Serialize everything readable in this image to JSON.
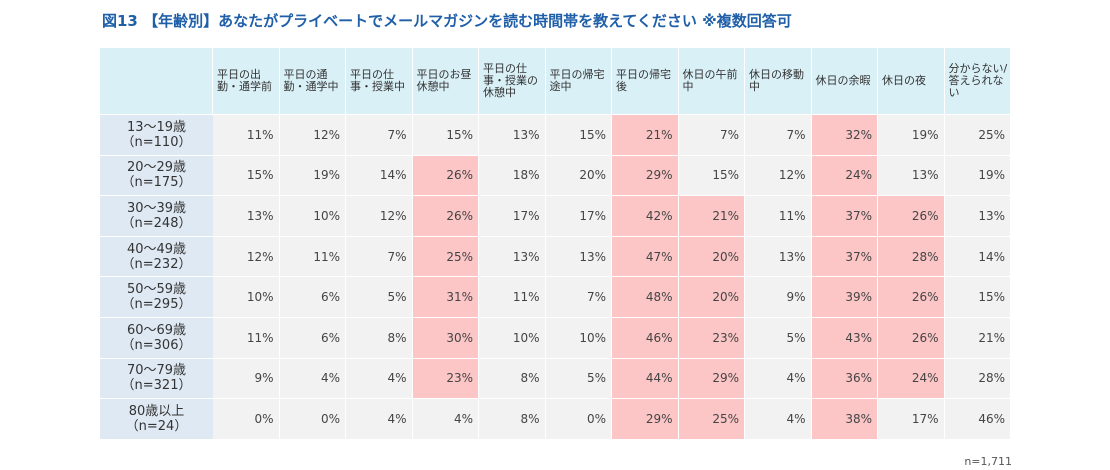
{
  "title": "図13 【年齢別】あなたがプライベートでメールマガジンを読む時間帯を教えてください ※複数回答可",
  "note": "n=1,711",
  "colors": {
    "title": "#1f5fa8",
    "header": "#d9f0f7",
    "row_label": "#dfe9f3",
    "cell": "#f2f2f2",
    "highlight": "#fcc6c7"
  },
  "chart_data": {
    "type": "table",
    "columns": [
      "平日の出勤・通学前",
      "平日の通勤・通学中",
      "平日の仕事・授業中",
      "平日のお昼休憩中",
      "平日の仕事・授業の休憩中",
      "平日の帰宅途中",
      "平日の帰宅後",
      "休日の午前中",
      "休日の移動中",
      "休日の余暇",
      "休日の夜",
      "分からない/答えられない"
    ],
    "rows": [
      {
        "label": "13〜19歳",
        "n": "（n=110）",
        "values": [
          "11%",
          "12%",
          "7%",
          "15%",
          "13%",
          "15%",
          "21%",
          "7%",
          "7%",
          "32%",
          "19%",
          "25%"
        ],
        "highlight": [
          false,
          false,
          false,
          false,
          false,
          false,
          true,
          false,
          false,
          true,
          false,
          false
        ]
      },
      {
        "label": "20〜29歳",
        "n": "（n=175）",
        "values": [
          "15%",
          "19%",
          "14%",
          "26%",
          "18%",
          "20%",
          "29%",
          "15%",
          "12%",
          "24%",
          "13%",
          "19%"
        ],
        "highlight": [
          false,
          false,
          false,
          true,
          false,
          false,
          true,
          false,
          false,
          true,
          false,
          false
        ]
      },
      {
        "label": "30〜39歳",
        "n": "（n=248）",
        "values": [
          "13%",
          "10%",
          "12%",
          "26%",
          "17%",
          "17%",
          "42%",
          "21%",
          "11%",
          "37%",
          "26%",
          "13%"
        ],
        "highlight": [
          false,
          false,
          false,
          true,
          false,
          false,
          true,
          true,
          false,
          true,
          true,
          false
        ]
      },
      {
        "label": "40〜49歳",
        "n": "（n=232）",
        "values": [
          "12%",
          "11%",
          "7%",
          "25%",
          "13%",
          "13%",
          "47%",
          "20%",
          "13%",
          "37%",
          "28%",
          "14%"
        ],
        "highlight": [
          false,
          false,
          false,
          true,
          false,
          false,
          true,
          true,
          false,
          true,
          true,
          false
        ]
      },
      {
        "label": "50〜59歳",
        "n": "（n=295）",
        "values": [
          "10%",
          "6%",
          "5%",
          "31%",
          "11%",
          "7%",
          "48%",
          "20%",
          "9%",
          "39%",
          "26%",
          "15%"
        ],
        "highlight": [
          false,
          false,
          false,
          true,
          false,
          false,
          true,
          true,
          false,
          true,
          true,
          false
        ]
      },
      {
        "label": "60〜69歳",
        "n": "（n=306）",
        "values": [
          "11%",
          "6%",
          "8%",
          "30%",
          "10%",
          "10%",
          "46%",
          "23%",
          "5%",
          "43%",
          "26%",
          "21%"
        ],
        "highlight": [
          false,
          false,
          false,
          true,
          false,
          false,
          true,
          true,
          false,
          true,
          true,
          false
        ]
      },
      {
        "label": "70〜79歳",
        "n": "（n=321）",
        "values": [
          "9%",
          "4%",
          "4%",
          "23%",
          "8%",
          "5%",
          "44%",
          "29%",
          "4%",
          "36%",
          "24%",
          "28%"
        ],
        "highlight": [
          false,
          false,
          false,
          true,
          false,
          false,
          true,
          true,
          false,
          true,
          true,
          false
        ]
      },
      {
        "label": "80歳以上",
        "n": "（n=24）",
        "values": [
          "0%",
          "0%",
          "4%",
          "4%",
          "8%",
          "0%",
          "29%",
          "25%",
          "4%",
          "38%",
          "17%",
          "46%"
        ],
        "highlight": [
          false,
          false,
          false,
          false,
          false,
          false,
          true,
          true,
          false,
          true,
          false,
          false
        ]
      }
    ]
  }
}
